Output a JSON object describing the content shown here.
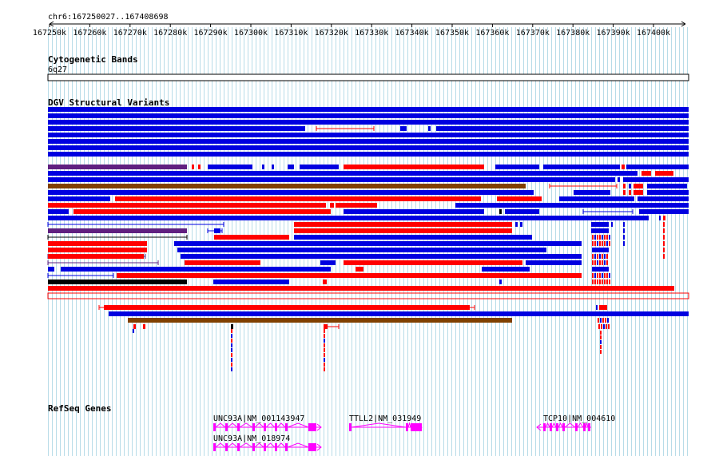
{
  "ruler": {
    "region": "chr6:167250027..167408698",
    "ticks": [
      "167250k",
      "167260k",
      "167270k",
      "167280k",
      "167290k",
      "167300k",
      "167310k",
      "167320k",
      "167330k",
      "167340k",
      "167350k",
      "167360k",
      "167370k",
      "167380k",
      "167390k",
      "167400k"
    ]
  },
  "tracks": {
    "cytoband": {
      "title": "Cytogenetic Bands",
      "band": "6q27"
    },
    "dgv": {
      "title": "DGV Structural Variants"
    },
    "refseq": {
      "title": "RefSeq Genes",
      "genes": [
        {
          "label": "UNC93A|NM_001143947"
        },
        {
          "label": "UNC93A|NM_018974"
        },
        {
          "label": "TTLL2|NM_031949"
        },
        {
          "label": "TCP10|NM_004610"
        }
      ]
    }
  },
  "colors": {
    "gridline": "#b8dce8",
    "loss": "#ff0000",
    "gain": "#0000e0",
    "gain_loss": "#804000",
    "inversion": "#602080",
    "complex": "#000000",
    "gene": "#ff00ff"
  }
}
